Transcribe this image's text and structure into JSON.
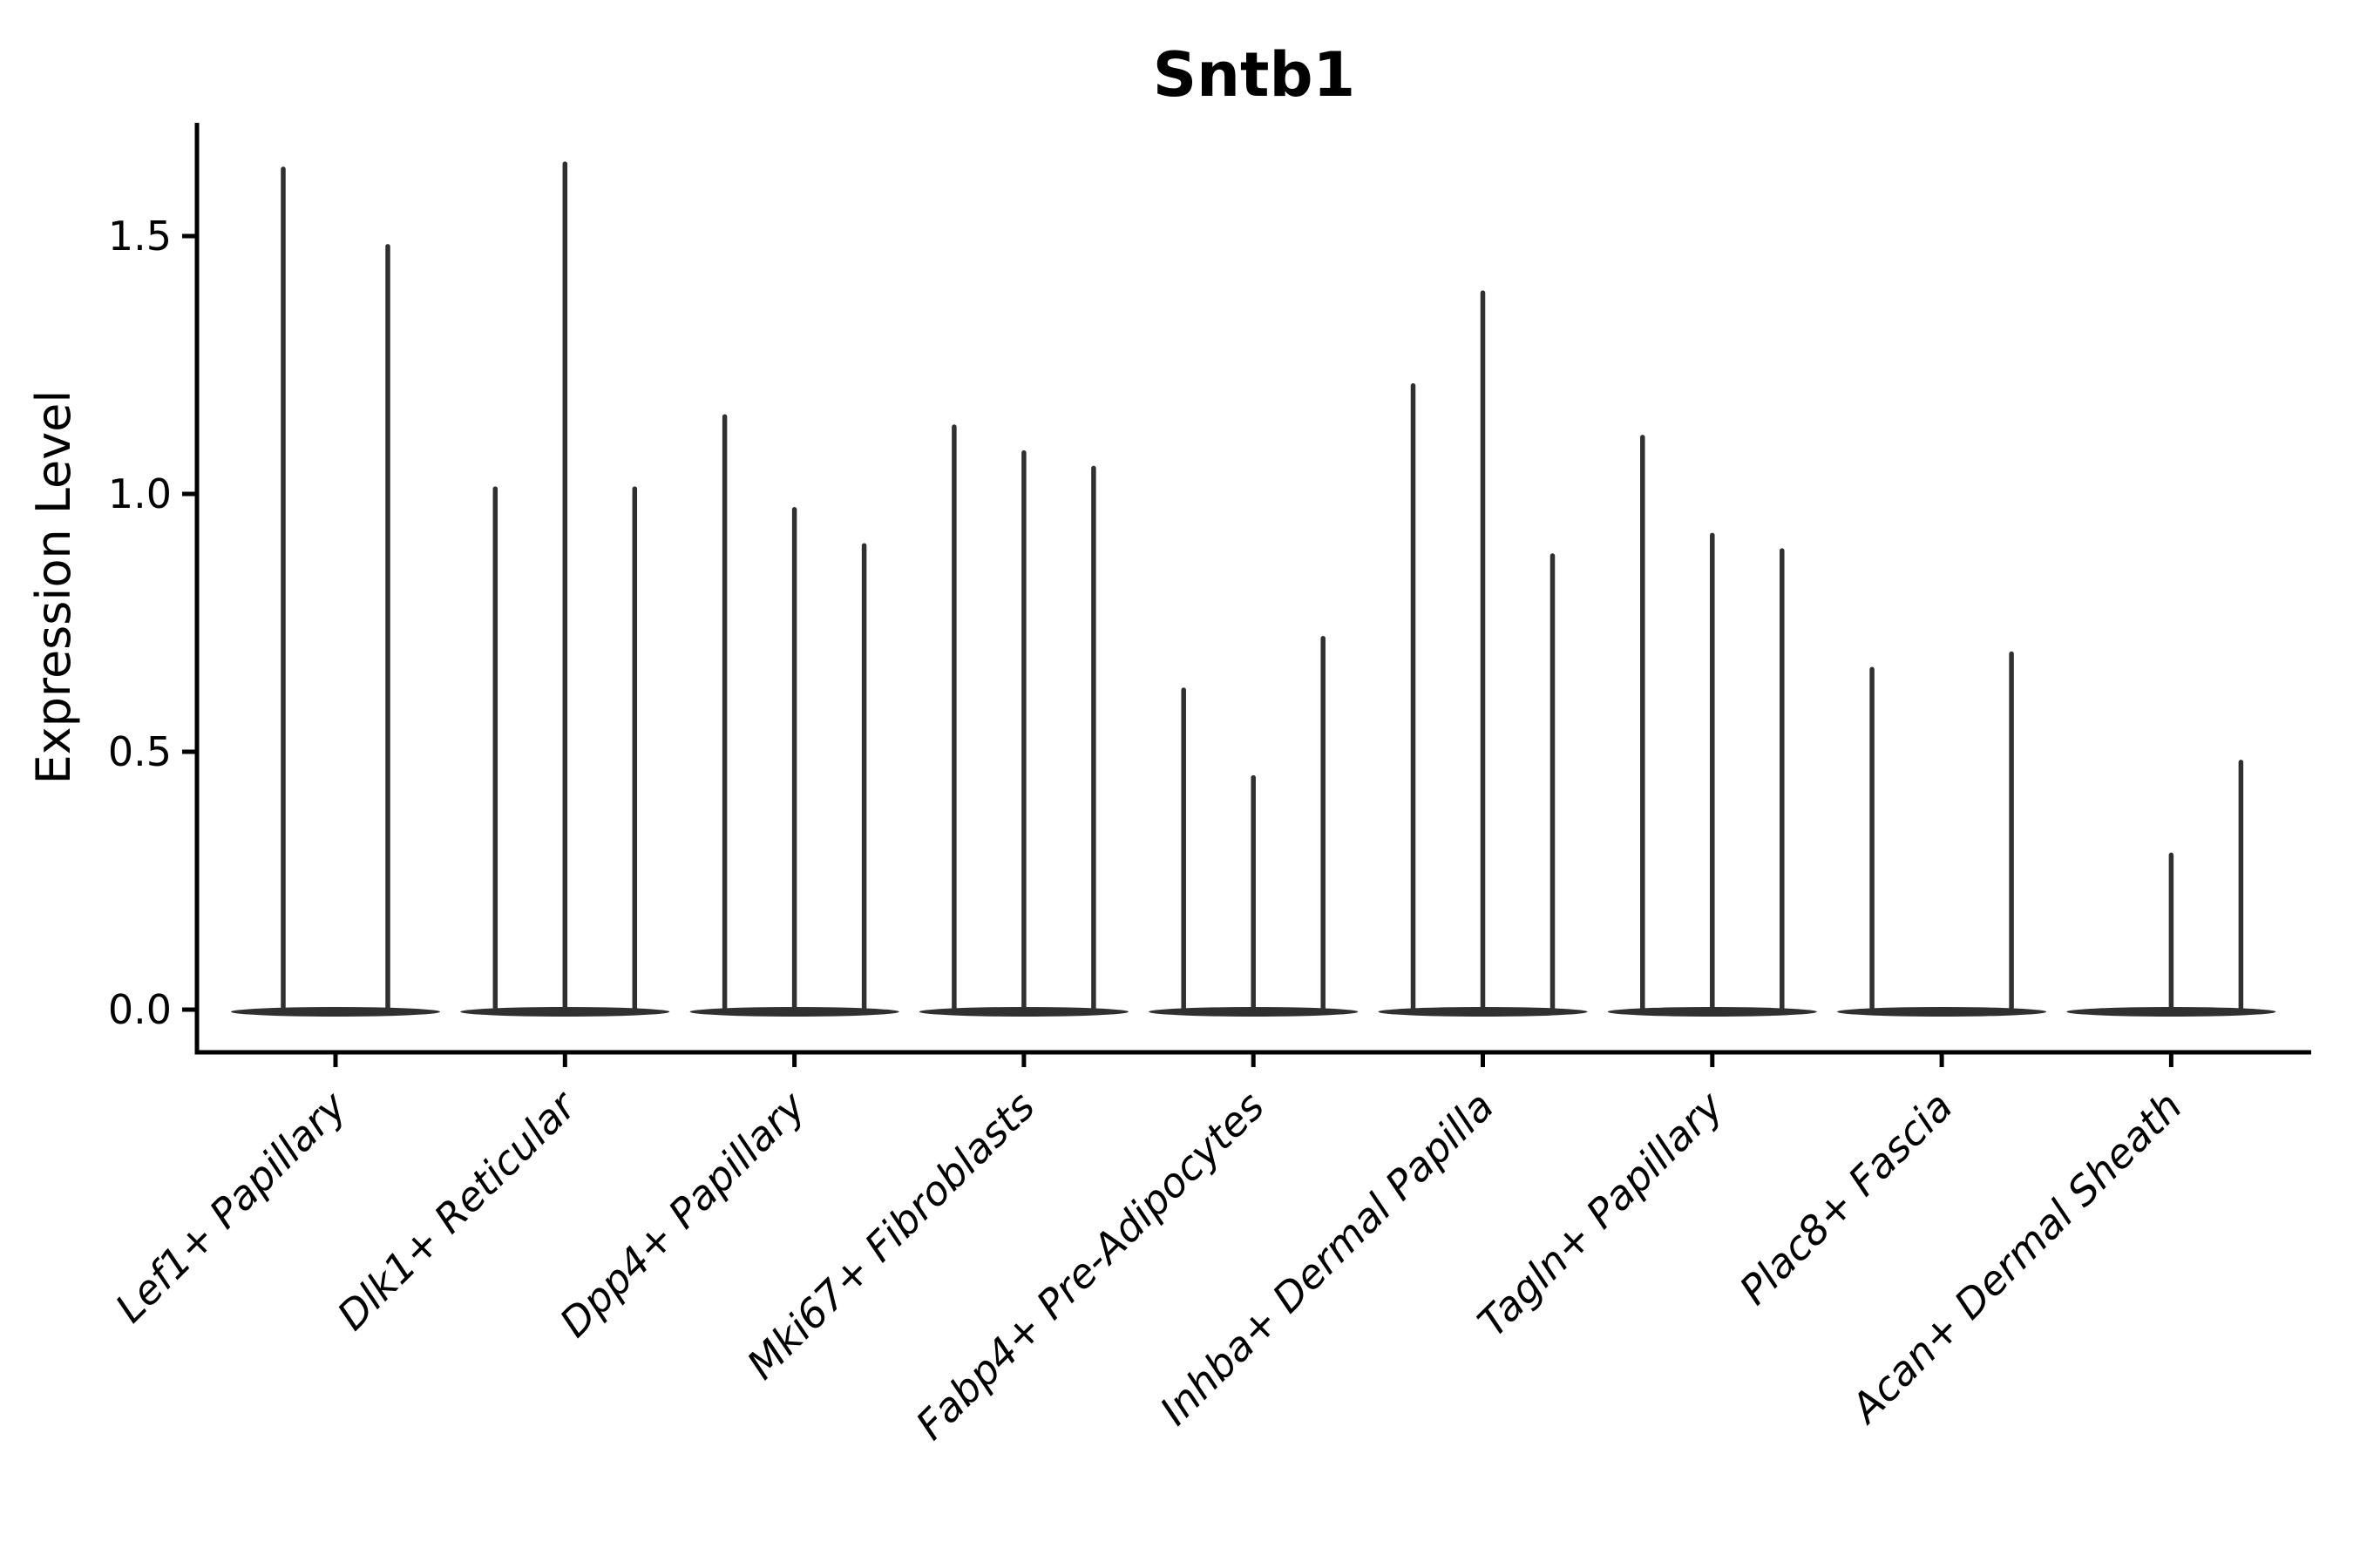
{
  "figure": {
    "title": "Sntb1",
    "ylabel": "Expression Level"
  },
  "chart_data": {
    "type": "violin",
    "title": "Sntb1",
    "xlabel": "",
    "ylabel": "Expression Level",
    "ylim": [
      -0.08,
      1.72
    ],
    "yticks": [
      0.0,
      0.5,
      1.0,
      1.5
    ],
    "ytick_labels": [
      "0.0",
      "0.5",
      "1.0",
      "1.5"
    ],
    "grid": false,
    "legend": null,
    "categories": [
      "Lef1+ Papillary",
      "Dlk1+ Reticular",
      "Dpp4+ Papillary",
      "Mki67+ Fibroblasts",
      "Fabp4+ Pre-Adipocytes",
      "Inhba+ Dermal Papilla",
      "Tagln+ Papillary",
      "Plac8+ Fascia",
      "Acan+ Dermal Sheath"
    ],
    "groups": [
      {
        "label": "Lef1+ Papillary",
        "n_slots": 2,
        "violins": [
          {
            "slot": 0,
            "max": 1.63
          },
          {
            "slot": 1,
            "max": 1.48
          }
        ]
      },
      {
        "label": "Dlk1+ Reticular",
        "n_slots": 3,
        "violins": [
          {
            "slot": 0,
            "max": 1.01
          },
          {
            "slot": 1,
            "max": 1.64
          },
          {
            "slot": 2,
            "max": 1.01
          }
        ]
      },
      {
        "label": "Dpp4+ Papillary",
        "n_slots": 3,
        "violins": [
          {
            "slot": 0,
            "max": 1.15
          },
          {
            "slot": 1,
            "max": 0.97
          },
          {
            "slot": 2,
            "max": 0.9
          }
        ]
      },
      {
        "label": "Mki67+ Fibroblasts",
        "n_slots": 3,
        "violins": [
          {
            "slot": 0,
            "max": 1.13
          },
          {
            "slot": 1,
            "max": 1.08
          },
          {
            "slot": 2,
            "max": 1.05
          }
        ]
      },
      {
        "label": "Fabp4+ Pre-Adipocytes",
        "n_slots": 3,
        "violins": [
          {
            "slot": 0,
            "max": 0.62
          },
          {
            "slot": 1,
            "max": 0.45
          },
          {
            "slot": 2,
            "max": 0.72
          }
        ]
      },
      {
        "label": "Inhba+ Dermal Papilla",
        "n_slots": 3,
        "violins": [
          {
            "slot": 0,
            "max": 1.21
          },
          {
            "slot": 1,
            "max": 1.39
          },
          {
            "slot": 2,
            "max": 0.88
          }
        ]
      },
      {
        "label": "Tagln+ Papillary",
        "n_slots": 3,
        "violins": [
          {
            "slot": 0,
            "max": 1.11
          },
          {
            "slot": 1,
            "max": 0.92
          },
          {
            "slot": 2,
            "max": 0.89
          }
        ]
      },
      {
        "label": "Plac8+ Fascia",
        "n_slots": 3,
        "violins": [
          {
            "slot": 0,
            "max": 0.66
          },
          {
            "slot": 1,
            "max": 0.0
          },
          {
            "slot": 2,
            "max": 0.69
          }
        ]
      },
      {
        "label": "Acan+ Dermal Sheath",
        "n_slots": 3,
        "violins": [
          {
            "slot": 0,
            "max": 0.0
          },
          {
            "slot": 1,
            "max": 0.3
          },
          {
            "slot": 2,
            "max": 0.48
          }
        ]
      }
    ],
    "colors": {
      "violin": "#303030",
      "axis": "#000000",
      "text": "#000000",
      "background": "#ffffff"
    }
  }
}
